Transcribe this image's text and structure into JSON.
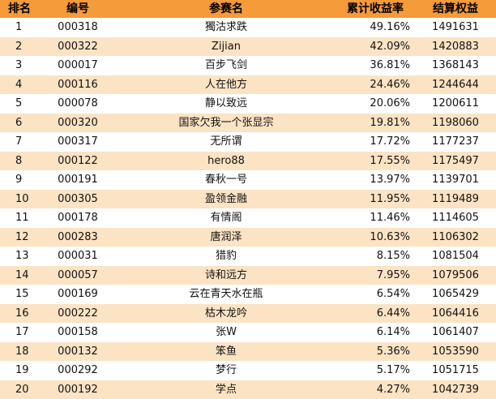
{
  "header": {
    "rank": "排名",
    "code": "编号",
    "name": "参赛名",
    "return": "累计收益率",
    "equity": "结算权益"
  },
  "rows": [
    {
      "rank": "1",
      "code": "000318",
      "name": "獨沽求跌",
      "return": "49.16%",
      "equity": "1491631"
    },
    {
      "rank": "2",
      "code": "000322",
      "name": "Zijian",
      "return": "42.09%",
      "equity": "1420883"
    },
    {
      "rank": "3",
      "code": "000017",
      "name": "百步飞剑",
      "return": "36.81%",
      "equity": "1368143"
    },
    {
      "rank": "4",
      "code": "000116",
      "name": "人在他方",
      "return": "24.46%",
      "equity": "1244644"
    },
    {
      "rank": "5",
      "code": "000078",
      "name": "静以致远",
      "return": "20.06%",
      "equity": "1200611"
    },
    {
      "rank": "6",
      "code": "000320",
      "name": "国家欠我一个张显宗",
      "return": "19.81%",
      "equity": "1198060"
    },
    {
      "rank": "7",
      "code": "000317",
      "name": "无所谓",
      "return": "17.72%",
      "equity": "1177237"
    },
    {
      "rank": "8",
      "code": "000122",
      "name": "hero88",
      "return": "17.55%",
      "equity": "1175497"
    },
    {
      "rank": "9",
      "code": "000191",
      "name": "春秋一号",
      "return": "13.97%",
      "equity": "1139701"
    },
    {
      "rank": "10",
      "code": "000305",
      "name": "盈领金融",
      "return": "11.95%",
      "equity": "1119489"
    },
    {
      "rank": "11",
      "code": "000178",
      "name": "有情阁",
      "return": "11.46%",
      "equity": "1114605"
    },
    {
      "rank": "12",
      "code": "000283",
      "name": "唐润泽",
      "return": "10.63%",
      "equity": "1106302"
    },
    {
      "rank": "13",
      "code": "000031",
      "name": "猎豹",
      "return": "8.15%",
      "equity": "1081504"
    },
    {
      "rank": "14",
      "code": "000057",
      "name": "诗和远方",
      "return": "7.95%",
      "equity": "1079506"
    },
    {
      "rank": "15",
      "code": "000169",
      "name": "云在青天水在瓶",
      "return": "6.54%",
      "equity": "1065429"
    },
    {
      "rank": "16",
      "code": "000222",
      "name": "枯木龙吟",
      "return": "6.44%",
      "equity": "1064416"
    },
    {
      "rank": "17",
      "code": "000158",
      "name": "张W",
      "return": "6.14%",
      "equity": "1061407"
    },
    {
      "rank": "18",
      "code": "000132",
      "name": "笨鱼",
      "return": "5.36%",
      "equity": "1053590"
    },
    {
      "rank": "19",
      "code": "000292",
      "name": "梦行",
      "return": "5.17%",
      "equity": "1051715"
    },
    {
      "rank": "20",
      "code": "000192",
      "name": "学点",
      "return": "4.27%",
      "equity": "1042739"
    }
  ],
  "colors": {
    "header_bg": "#f59b3a",
    "stripe_bg": "#fbe3c4",
    "row_bg": "#ffffff"
  }
}
